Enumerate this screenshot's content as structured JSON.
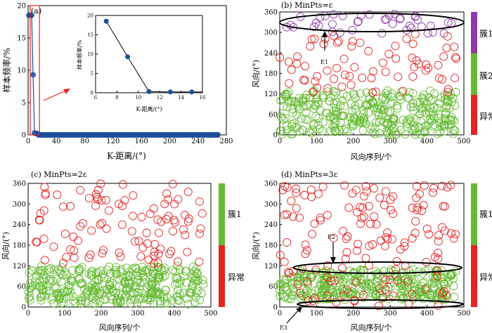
{
  "figure": {
    "panels": [
      {
        "id": "a",
        "label": "(a)",
        "type": "line",
        "xlabel": "K-距离/(°)",
        "ylabel": "样本频率/%",
        "xlim": [
          0,
          280
        ],
        "ylim": [
          0,
          20
        ],
        "xticks": [
          "0",
          "40",
          "80",
          "120",
          "160",
          "200",
          "240",
          "280"
        ],
        "yticks": [
          "0",
          "5",
          "10",
          "15",
          "20"
        ]
      },
      {
        "id": "a_inset",
        "type": "line",
        "xlabel": "K-距离/(°)",
        "ylabel": "样本频率/%",
        "xlim": [
          6,
          16
        ],
        "ylim": [
          0,
          20
        ],
        "xticks": [
          "6",
          "8",
          "10",
          "12",
          "14",
          "16"
        ],
        "yticks": [
          "0",
          "5",
          "10",
          "15",
          "20"
        ]
      },
      {
        "id": "b",
        "label": "(b)  MinPts=ε",
        "type": "scatter",
        "xlabel": "风向序列/个",
        "ylabel": "风向/(°)",
        "xlim": [
          0,
          500
        ],
        "ylim": [
          0,
          360
        ],
        "xticks": [
          "0",
          "100",
          "200",
          "300",
          "400",
          "500"
        ],
        "yticks": [
          "0",
          "60",
          "120",
          "180",
          "240",
          "300",
          "360"
        ],
        "legend": [
          {
            "label": "簇1",
            "color": "#8e3ba6"
          },
          {
            "label": "簇2",
            "color": "#66bb33"
          },
          {
            "label": "异常",
            "color": "#e52323"
          }
        ],
        "annotations": [
          "E1"
        ]
      },
      {
        "id": "c",
        "label": "(c)  MinPts=2ε",
        "type": "scatter",
        "xlabel": "风向序列/个",
        "ylabel": "风向/(°)",
        "xlim": [
          0,
          500
        ],
        "ylim": [
          0,
          360
        ],
        "xticks": [
          "0",
          "100",
          "200",
          "300",
          "400",
          "500"
        ],
        "yticks": [
          "0",
          "60",
          "120",
          "180",
          "240",
          "300",
          "360"
        ],
        "legend": [
          {
            "label": "簇1",
            "color": "#66bb33"
          },
          {
            "label": "异常",
            "color": "#e52323"
          }
        ]
      },
      {
        "id": "d",
        "label": "(d)  MinPts=3ε",
        "type": "scatter",
        "xlabel": "风向序列/个",
        "ylabel": "风向/(°)",
        "xlim": [
          0,
          500
        ],
        "ylim": [
          0,
          360
        ],
        "xticks": [
          "0",
          "100",
          "200",
          "300",
          "400",
          "500"
        ],
        "yticks": [
          "0",
          "60",
          "120",
          "180",
          "240",
          "300",
          "360"
        ],
        "legend": [
          {
            "label": "簇1",
            "color": "#66bb33"
          },
          {
            "label": "异常",
            "color": "#e52323"
          }
        ],
        "annotations": [
          "E2",
          "E3"
        ]
      }
    ]
  },
  "chart_data": [
    {
      "panel": "a",
      "type": "line",
      "xlabel": "K-距离/(°)",
      "ylabel": "样本频率/%",
      "xlim": [
        0,
        280
      ],
      "ylim": [
        0,
        20
      ],
      "series": [
        {
          "x": [
            1,
            3,
            5,
            7,
            9,
            11,
            13,
            15,
            20,
            30,
            40,
            50,
            60,
            70,
            80,
            90,
            100,
            110,
            120,
            130,
            140,
            150,
            160,
            170,
            180,
            190,
            200,
            210,
            220,
            230,
            240,
            250,
            260,
            268
          ],
          "y": [
            18.5,
            18.5,
            18.5,
            9.3,
            0.3,
            0.2,
            0.2,
            0.1,
            0,
            0,
            0,
            0,
            0,
            0,
            0,
            0,
            0,
            0,
            0,
            0,
            0,
            0,
            0,
            0,
            0,
            0,
            0,
            0,
            0,
            0,
            0,
            0,
            0,
            0
          ]
        }
      ],
      "color": "#1f4e9c",
      "highlight_color": "#e52323"
    },
    {
      "panel": "a_inset",
      "type": "line",
      "xlim": [
        6,
        16
      ],
      "ylim": [
        0,
        20
      ],
      "series": [
        {
          "x": [
            7,
            9,
            11,
            13,
            15
          ],
          "y": [
            18.5,
            9.3,
            0.3,
            0.2,
            0.2
          ]
        }
      ],
      "color": "#1f4e9c"
    },
    {
      "panel": "b",
      "type": "scatter",
      "xlim": [
        0,
        500
      ],
      "ylim": [
        0,
        360
      ],
      "series": [
        {
          "name": "簇1",
          "color": "#8e3ba6",
          "n": 40,
          "y_range": [
            295,
            360
          ]
        },
        {
          "name": "簇2",
          "color": "#66bb33",
          "n": 330,
          "y_range": [
            0,
            130
          ]
        },
        {
          "name": "异常",
          "color": "#e52323",
          "n": 70,
          "y_range": [
            120,
            300
          ]
        }
      ]
    },
    {
      "panel": "c",
      "type": "scatter",
      "xlim": [
        0,
        500
      ],
      "ylim": [
        0,
        360
      ],
      "series": [
        {
          "name": "簇1",
          "color": "#66bb33",
          "n": 340,
          "y_range": [
            8,
            120
          ]
        },
        {
          "name": "异常",
          "color": "#e52323",
          "n": 100,
          "y_range": [
            125,
            360
          ]
        }
      ]
    },
    {
      "panel": "d",
      "type": "scatter",
      "xlim": [
        0,
        500
      ],
      "ylim": [
        0,
        360
      ],
      "series": [
        {
          "name": "簇1",
          "color": "#66bb33",
          "n": 320,
          "y_range": [
            20,
            110
          ]
        },
        {
          "name": "异常",
          "color": "#e52323",
          "n": 150,
          "y_range": [
            0,
            360
          ]
        }
      ]
    }
  ]
}
